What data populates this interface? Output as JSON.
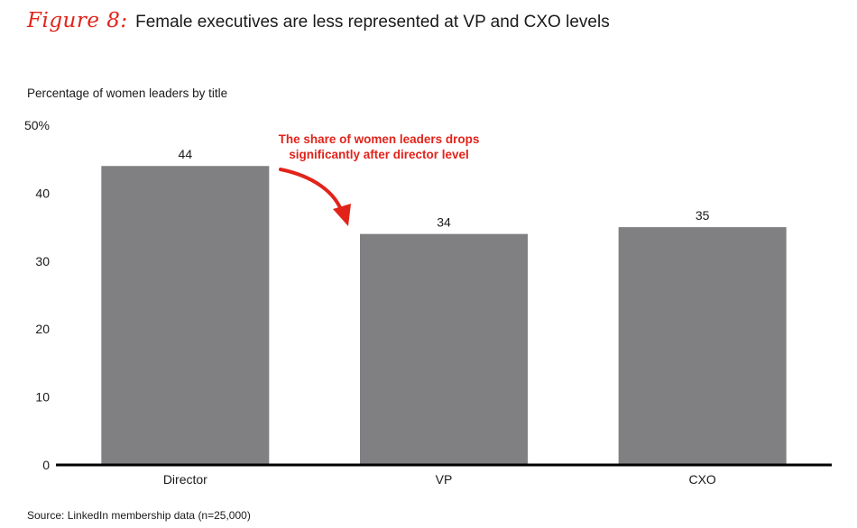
{
  "header": {
    "figure_label": "Figure 8:",
    "title": "Female executives are less represented at VP and CXO levels"
  },
  "colors": {
    "accent": "#e2231a",
    "bar": "#808083",
    "axis": "#000000"
  },
  "chart_data": {
    "type": "bar",
    "title": "Female executives are less represented at VP and CXO levels",
    "ylabel": "Percentage of women leaders by title",
    "xlabel": "",
    "categories": [
      "Director",
      "VP",
      "CXO"
    ],
    "values": [
      44,
      34,
      35
    ],
    "data_labels": [
      "44",
      "34",
      "35"
    ],
    "ylim": [
      0,
      50
    ],
    "yticks": [
      0,
      10,
      20,
      30,
      40,
      50
    ],
    "ytick_labels": [
      "0",
      "10",
      "20",
      "30",
      "40",
      "50%"
    ],
    "grid": false,
    "legend": "none",
    "annotation": {
      "line1": "The share of women leaders drops",
      "line2": "significantly after director level"
    }
  },
  "source": "Source: LinkedIn membership data (n=25,000)"
}
